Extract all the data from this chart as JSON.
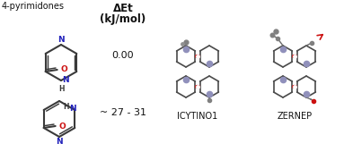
{
  "title_left": "4-pyrimidones",
  "header_delta": "ΔEt",
  "header_unit": "(kJ/mol)",
  "value1": "0.00",
  "value2": "~ 27 - 31",
  "label1": "ICYTINO1",
  "label2": "ZERNEP",
  "bg_color": "#ffffff",
  "text_color": "#111111",
  "blue_color": "#2222bb",
  "red_color": "#cc1111",
  "dark_gray": "#3a3a3a",
  "bond_color": "#555555",
  "ring_dark": "#4a4a4a",
  "ring_gray": "#6a6a6a",
  "ring_light": "#909090",
  "lavender": "#9090bb",
  "red_bond": "#cc2222",
  "white_bond": "#e0e0e0",
  "methyl_gray": "#808080"
}
